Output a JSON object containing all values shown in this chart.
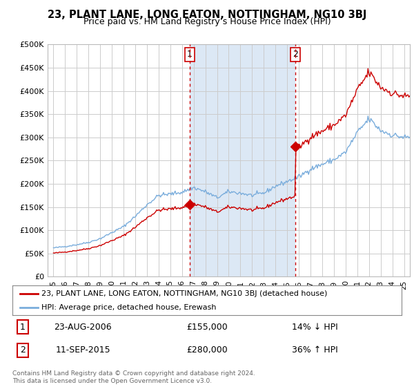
{
  "title": "23, PLANT LANE, LONG EATON, NOTTINGHAM, NG10 3BJ",
  "subtitle": "Price paid vs. HM Land Registry’s House Price Index (HPI)",
  "legend_line1": "23, PLANT LANE, LONG EATON, NOTTINGHAM, NG10 3BJ (detached house)",
  "legend_line2": "HPI: Average price, detached house, Erewash",
  "transaction1_label": "1",
  "transaction1_date": "23-AUG-2006",
  "transaction1_price": "£155,000",
  "transaction1_hpi": "14% ↓ HPI",
  "transaction2_label": "2",
  "transaction2_date": "11-SEP-2015",
  "transaction2_price": "£280,000",
  "transaction2_hpi": "36% ↑ HPI",
  "footer": "Contains HM Land Registry data © Crown copyright and database right 2024.\nThis data is licensed under the Open Government Licence v3.0.",
  "property_color": "#cc0000",
  "hpi_color": "#7aaddc",
  "vline_color": "#cc0000",
  "background_color": "#ffffff",
  "plot_bg_color": "#ffffff",
  "shade_color": "#dce8f5",
  "grid_color": "#cccccc",
  "ylim": [
    0,
    500000
  ],
  "yticks": [
    0,
    50000,
    100000,
    150000,
    200000,
    250000,
    300000,
    350000,
    400000,
    450000,
    500000
  ],
  "ytick_labels": [
    "£0",
    "£50K",
    "£100K",
    "£150K",
    "£200K",
    "£250K",
    "£300K",
    "£350K",
    "£400K",
    "£450K",
    "£500K"
  ],
  "xlim_start": 1994.5,
  "xlim_end": 2025.5,
  "vline1_x": 2006.64,
  "vline2_x": 2015.7,
  "sale1_x": 2006.64,
  "sale1_y": 155000,
  "sale2_x": 2015.7,
  "sale2_y": 280000,
  "xtick_years": [
    1995,
    1996,
    1997,
    1998,
    1999,
    2000,
    2001,
    2002,
    2003,
    2004,
    2005,
    2006,
    2007,
    2008,
    2009,
    2010,
    2011,
    2012,
    2013,
    2014,
    2015,
    2016,
    2017,
    2018,
    2019,
    2020,
    2021,
    2022,
    2023,
    2024,
    2025
  ]
}
